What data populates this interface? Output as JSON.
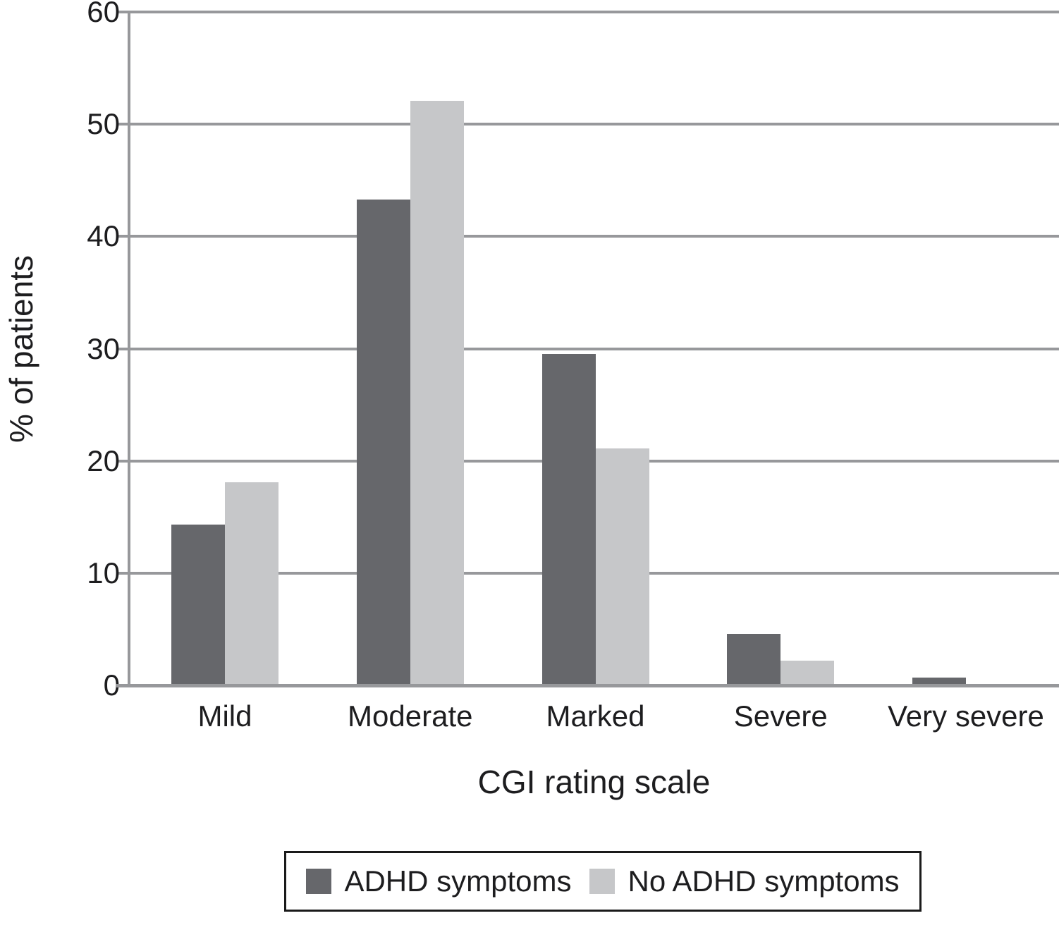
{
  "chart_data": {
    "type": "bar",
    "title": "",
    "categories": [
      "Mild",
      "Moderate",
      "Marked",
      "Severe",
      "Very severe"
    ],
    "series": [
      {
        "name": "ADHD symptoms",
        "color": "#66676b",
        "values": [
          14.3,
          43.3,
          29.5,
          4.6,
          0.7
        ]
      },
      {
        "name": "No ADHD symptoms",
        "color": "#c6c7c9",
        "values": [
          18.1,
          52.1,
          21.1,
          2.2,
          0
        ]
      }
    ],
    "xlabel": "CGI rating scale",
    "ylabel": "% of patients",
    "ylim": [
      0,
      60
    ],
    "yticks": [
      0,
      10,
      20,
      30,
      40,
      50,
      60
    ],
    "grid": true,
    "gridline_color": "#97989b",
    "axis_color": "#97989b",
    "text_color": "#1d1d1f",
    "background_color": "#ffffff",
    "legend_position": "bottom-center",
    "legend_border_color": "#1a1a1a"
  }
}
